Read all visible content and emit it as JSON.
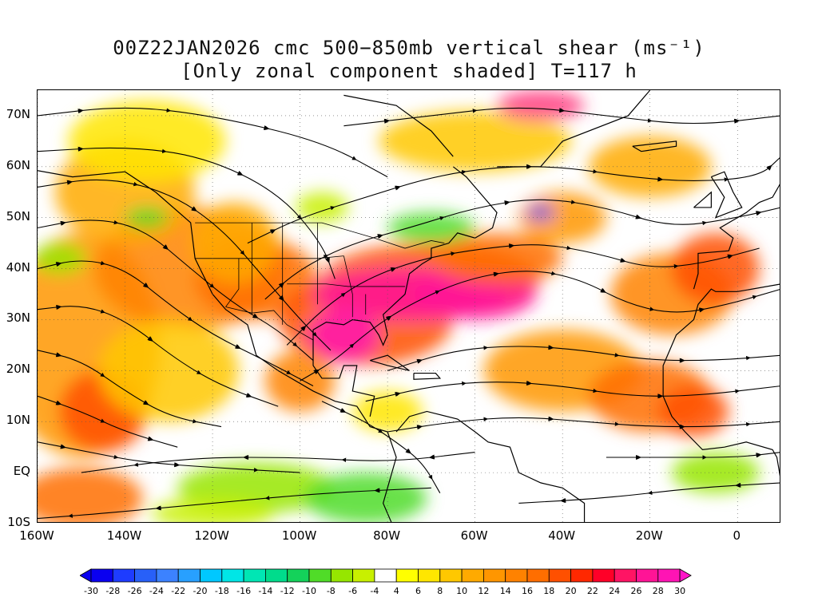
{
  "title": {
    "line1": "00Z22JAN2026 cmc 500−850mb vertical shear (ms⁻¹)",
    "line2": "[Only zonal component shaded] T=117 h"
  },
  "axes": {
    "lat_labels": [
      "70N",
      "60N",
      "50N",
      "40N",
      "30N",
      "20N",
      "10N",
      "EQ",
      "10S"
    ],
    "lat_values": [
      70,
      60,
      50,
      40,
      30,
      20,
      10,
      0,
      -10
    ],
    "lon_labels": [
      "160W",
      "140W",
      "120W",
      "100W",
      "80W",
      "60W",
      "40W",
      "20W",
      "0"
    ],
    "lon_values": [
      -160,
      -140,
      -120,
      -100,
      -80,
      -60,
      -40,
      -20,
      0
    ],
    "lon_range": [
      -160,
      10
    ],
    "lat_range": [
      -10,
      75
    ],
    "grid": "dotted"
  },
  "colorbar": {
    "labels": [
      "-30",
      "-28",
      "-26",
      "-24",
      "-22",
      "-20",
      "-18",
      "-16",
      "-14",
      "-12",
      "-10",
      "-8",
      "-6",
      "-4",
      "4",
      "6",
      "8",
      "10",
      "12",
      "14",
      "16",
      "18",
      "20",
      "22",
      "24",
      "26",
      "28",
      "30"
    ],
    "colors": [
      "#0a00f0",
      "#1e3cff",
      "#2860f8",
      "#3c82ff",
      "#28a0ff",
      "#00c8ff",
      "#00e6e6",
      "#00e6b4",
      "#00dc8c",
      "#14d25a",
      "#50dc28",
      "#96e600",
      "#c8f000",
      "#ffffff",
      "#ffff00",
      "#ffe600",
      "#ffc800",
      "#ffaa00",
      "#ff9600",
      "#ff8200",
      "#ff6e00",
      "#ff5000",
      "#ff2800",
      "#ff0028",
      "#ff1464",
      "#ff1496",
      "#ff14b4"
    ],
    "arrow_left": "#0a00f0",
    "arrow_right": "#ff14c8"
  },
  "chart_data": {
    "type": "map",
    "field": "500-850mb zonal vertical shear",
    "units": "ms-1",
    "overlay": "shear streamlines",
    "features": [
      {
        "region": "subtropical jet band",
        "approx_lon": [
          -100,
          -40
        ],
        "approx_lat": [
          25,
          42
        ],
        "value": 28
      },
      {
        "region": "eastern Pacific band",
        "approx_lon": [
          -160,
          -110
        ],
        "approx_lat": [
          10,
          45
        ],
        "value": 16
      },
      {
        "region": "tropical Atlantic/Africa band",
        "approx_lon": [
          -60,
          0
        ],
        "approx_lat": [
          10,
          28
        ],
        "value": 16
      },
      {
        "region": "equatorial Pacific easterly shear",
        "approx_lon": [
          -130,
          -80
        ],
        "approx_lat": [
          -10,
          8
        ],
        "value": -8
      },
      {
        "region": "northwest Atlantic negative spot",
        "approx_lon": [
          -48,
          -44
        ],
        "approx_lat": [
          50,
          52
        ],
        "value": -24
      }
    ]
  }
}
